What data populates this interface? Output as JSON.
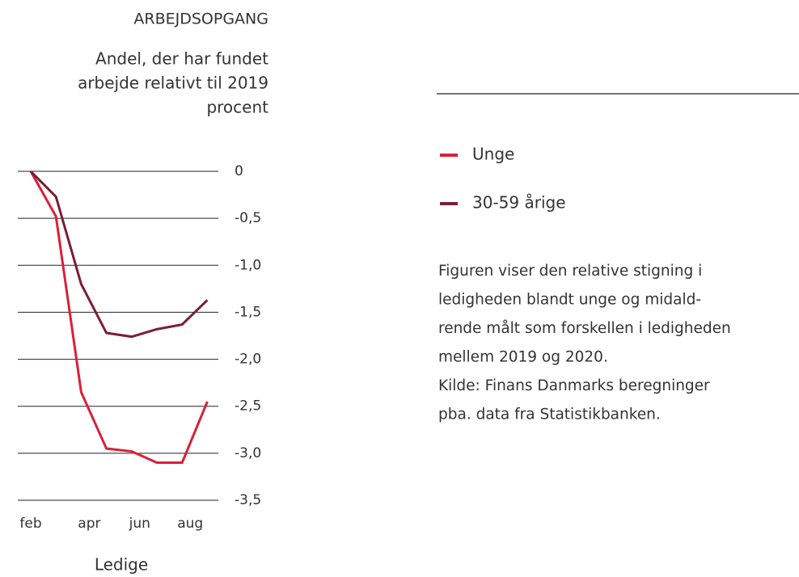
{
  "chart_data": {
    "type": "line",
    "title": "ARBEJDSOPGANG",
    "subtitle": [
      "Andel, der har fundet",
      "arbejde relativt til 2019",
      "procent"
    ],
    "x_label": "Ledige",
    "categories": [
      "feb",
      null,
      "apr",
      null,
      "jun",
      null,
      "aug",
      null
    ],
    "series": [
      {
        "name": "Unge",
        "color": "#d9203a",
        "values": [
          0,
          -0.48,
          -2.35,
          -2.95,
          -2.98,
          -3.1,
          -3.1,
          -2.45
        ]
      },
      {
        "name": "30-59 årige",
        "color": "#7a1f32",
        "values": [
          0,
          -0.27,
          -1.2,
          -1.72,
          -1.76,
          -1.68,
          -1.63,
          -1.37
        ]
      }
    ],
    "ylim": [
      0,
      -3.5
    ],
    "yticks": [
      0,
      {
        "value": -0.5,
        "label": "-0,5"
      },
      {
        "value": -1,
        "label": "-1,0"
      },
      {
        "value": -1.5,
        "label": "-1,5"
      },
      {
        "value": -2,
        "label": "-2,0"
      },
      {
        "value": -2.5,
        "label": "-2,5"
      },
      {
        "value": -3,
        "label": "-3,0"
      },
      {
        "value": -3.5,
        "label": "-3,5"
      }
    ],
    "grid": true,
    "note": [
      "Figuren viser den relative stigning i",
      "ledigheden blandt unge og midald-",
      "rende målt som forskellen i ledigheden",
      "mellem 2019 og 2020.",
      "Kilde: Finans Danmarks beregninger",
      "pba. data fra Statistikbanken."
    ]
  }
}
